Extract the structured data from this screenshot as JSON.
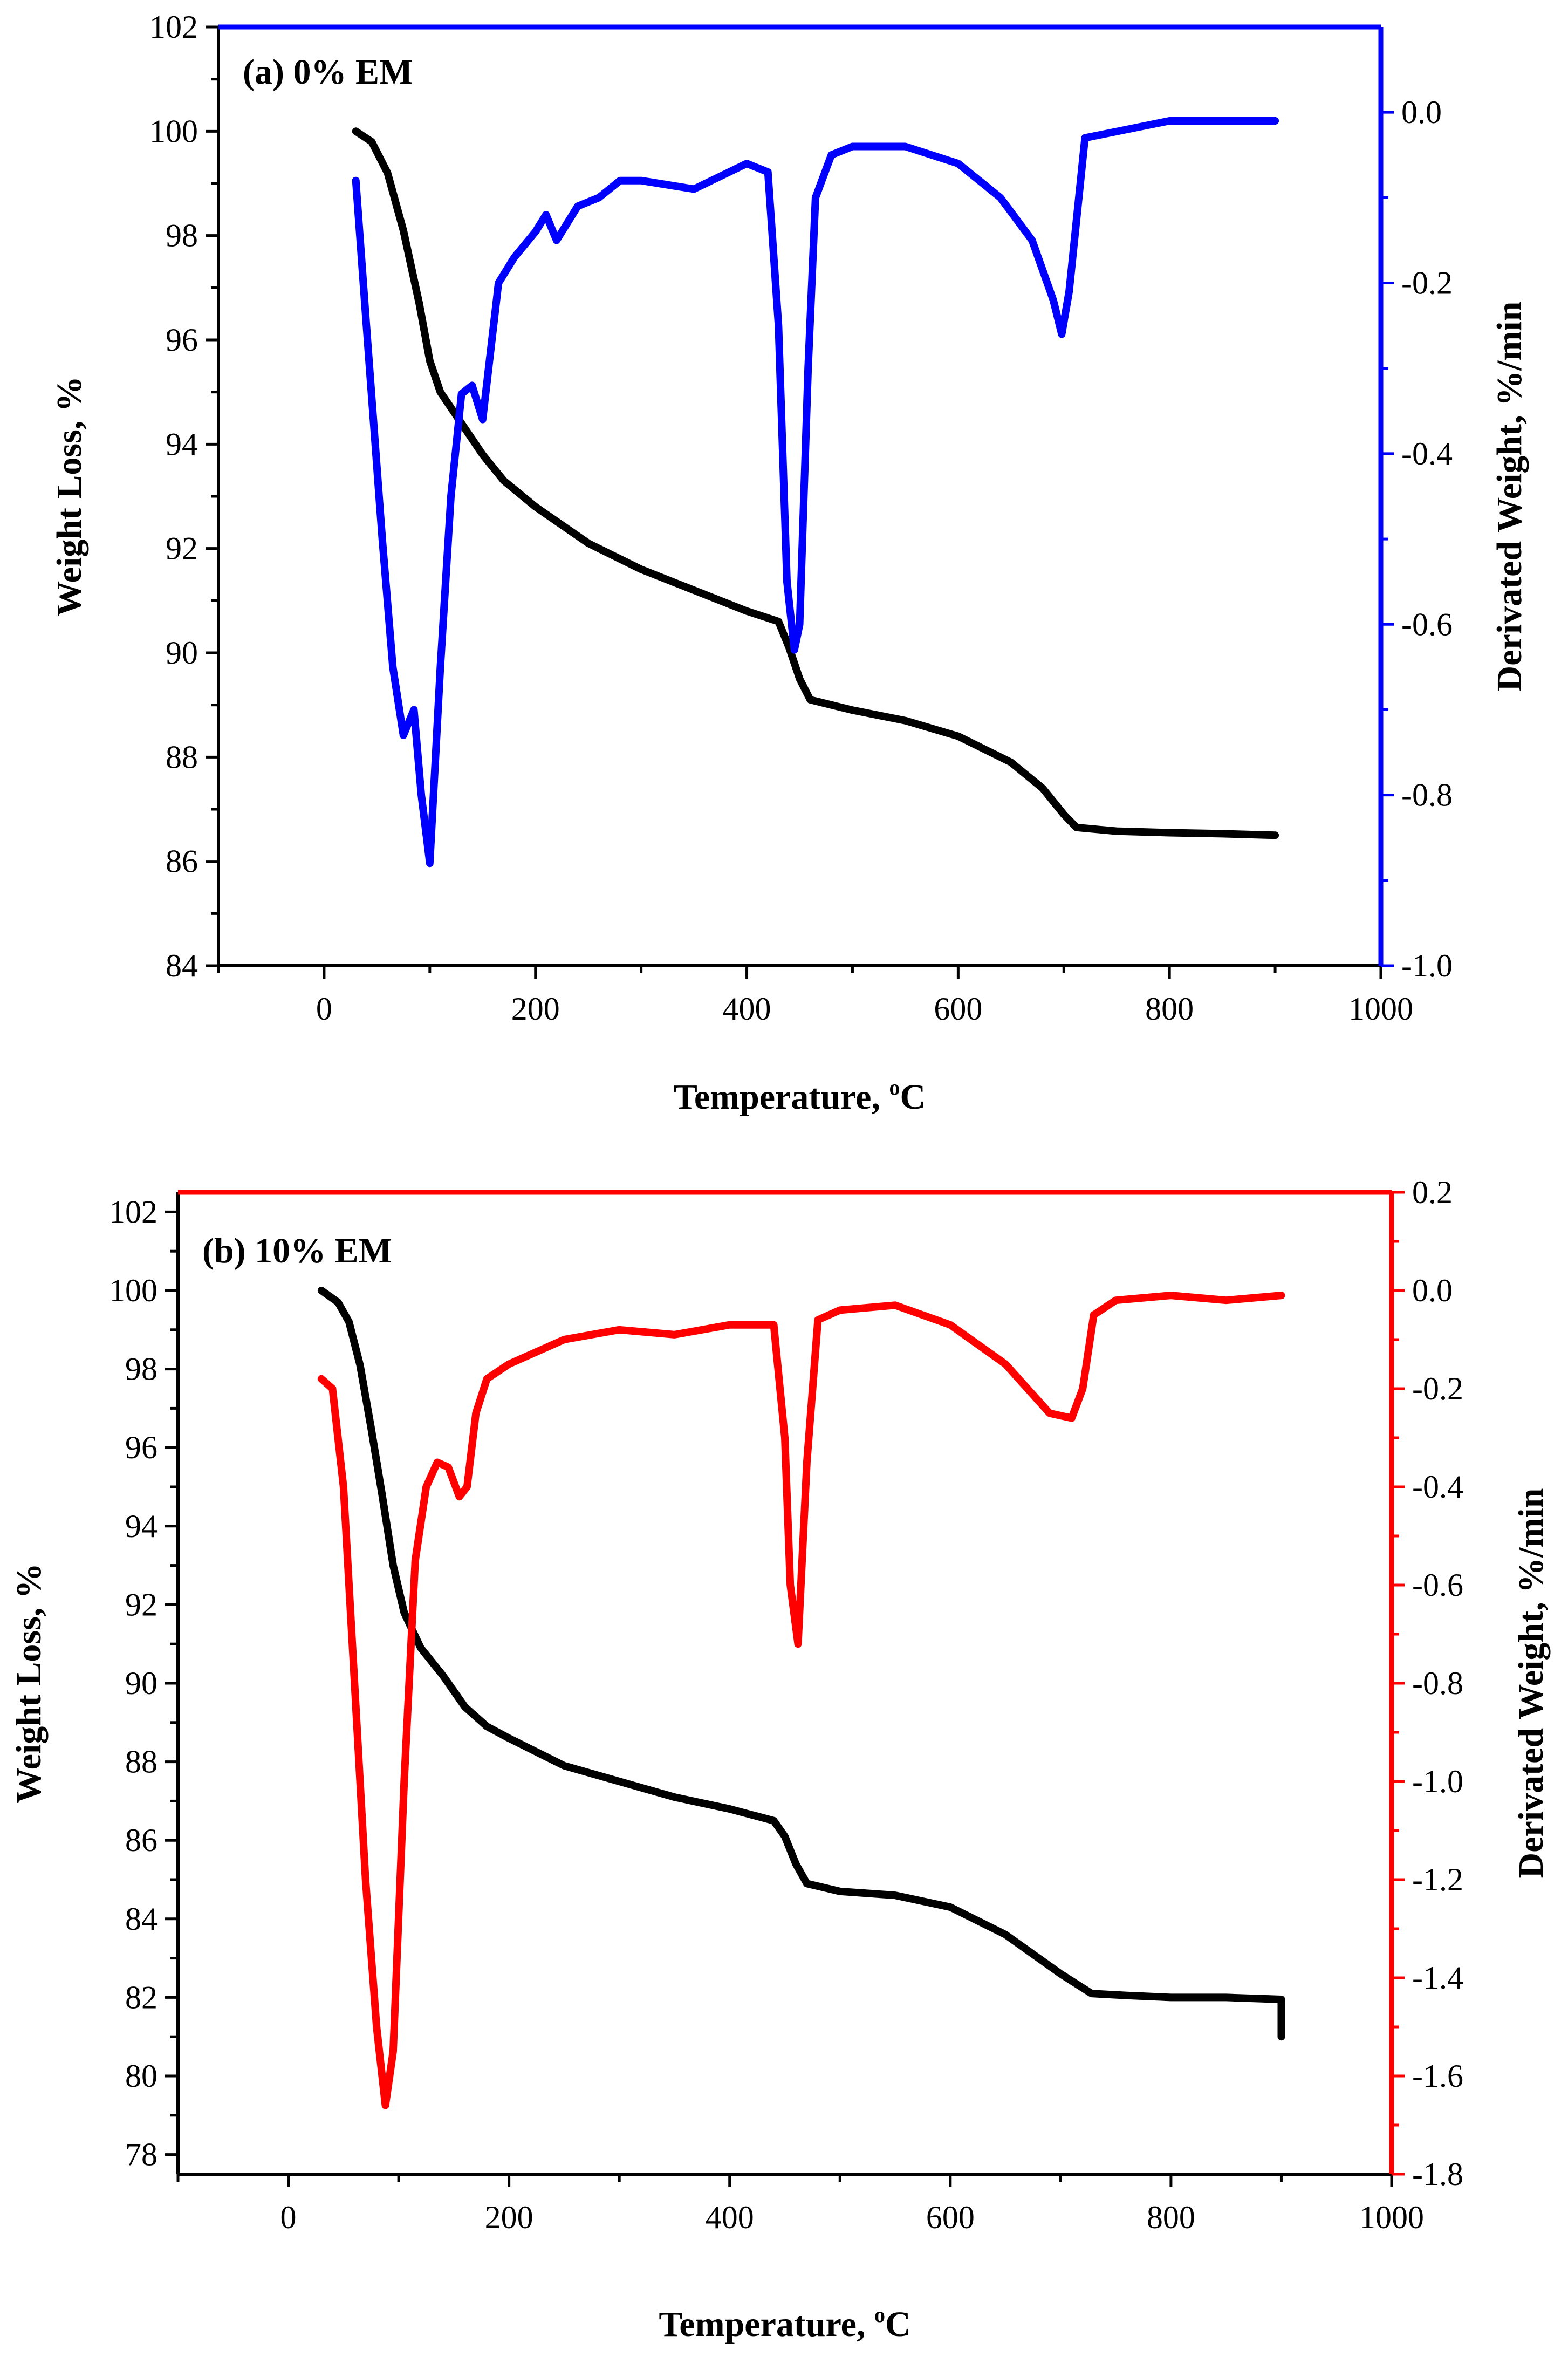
{
  "chart_data": [
    {
      "type": "line",
      "panel_label": "(a) 0% EM",
      "xlabel": "Temperature, ",
      "xlabel_sup": "o",
      "xlabel_unit": "C",
      "ylabel": "Weight Loss, %",
      "y2label": "Derivated Weight, %/min",
      "xlim": [
        -100,
        1000
      ],
      "ylim": [
        84,
        102
      ],
      "y2lim": [
        -1.0,
        0.1
      ],
      "x_ticks": [
        0,
        200,
        400,
        600,
        800,
        1000
      ],
      "y_ticks": [
        84,
        86,
        88,
        90,
        92,
        94,
        96,
        98,
        100,
        102
      ],
      "y2_ticks": [
        "-1.0",
        "-0.8",
        "-0.6",
        "-0.4",
        "-0.2",
        "0.0"
      ],
      "colors": {
        "weight": "#000000",
        "derivative": "#0000ff"
      },
      "series": [
        {
          "name": "Weight Loss",
          "axis": "left",
          "color": "#000000",
          "x": [
            30,
            45,
            60,
            75,
            90,
            100,
            110,
            130,
            150,
            170,
            200,
            250,
            300,
            350,
            400,
            430,
            440,
            450,
            460,
            500,
            550,
            600,
            650,
            680,
            700,
            712,
            750,
            800,
            850,
            900
          ],
          "y": [
            100.0,
            99.8,
            99.2,
            98.1,
            96.7,
            95.6,
            95.0,
            94.4,
            93.8,
            93.3,
            92.8,
            92.1,
            91.6,
            91.2,
            90.8,
            90.6,
            90.1,
            89.5,
            89.1,
            88.9,
            88.7,
            88.4,
            87.9,
            87.4,
            86.9,
            86.65,
            86.58,
            86.55,
            86.53,
            86.5
          ]
        },
        {
          "name": "Derivated Weight",
          "axis": "right",
          "color": "#0000ff",
          "x": [
            30,
            40,
            55,
            65,
            75,
            85,
            92,
            100,
            110,
            120,
            130,
            140,
            150,
            165,
            180,
            200,
            210,
            220,
            240,
            260,
            280,
            300,
            350,
            400,
            420,
            430,
            438,
            445,
            450,
            458,
            465,
            480,
            500,
            550,
            600,
            640,
            670,
            690,
            698,
            705,
            720,
            760,
            800,
            850,
            900
          ],
          "y": [
            -0.08,
            -0.25,
            -0.5,
            -0.65,
            -0.73,
            -0.7,
            -0.8,
            -0.88,
            -0.65,
            -0.45,
            -0.33,
            -0.32,
            -0.36,
            -0.2,
            -0.17,
            -0.14,
            -0.12,
            -0.15,
            -0.11,
            -0.1,
            -0.08,
            -0.08,
            -0.09,
            -0.06,
            -0.07,
            -0.25,
            -0.55,
            -0.63,
            -0.6,
            -0.3,
            -0.1,
            -0.05,
            -0.04,
            -0.04,
            -0.06,
            -0.1,
            -0.15,
            -0.22,
            -0.26,
            -0.21,
            -0.03,
            -0.02,
            -0.01,
            -0.01,
            -0.01
          ]
        }
      ]
    },
    {
      "type": "line",
      "panel_label": "(b) 10% EM",
      "xlabel": "Temperature, ",
      "xlabel_sup": "o",
      "xlabel_unit": "C",
      "ylabel": "Weight Loss, %",
      "y2label": "Derivated Weight, %/min",
      "xlim": [
        -100,
        1000
      ],
      "ylim": [
        77.5,
        102.5
      ],
      "y2lim": [
        -1.8,
        0.2
      ],
      "x_ticks": [
        0,
        200,
        400,
        600,
        800,
        1000
      ],
      "y_ticks": [
        78,
        80,
        82,
        84,
        86,
        88,
        90,
        92,
        94,
        96,
        98,
        100,
        102
      ],
      "y2_ticks": [
        "-1.8",
        "-1.6",
        "-1.4",
        "-1.2",
        "-1.0",
        "-0.8",
        "-0.6",
        "-0.4",
        "-0.2",
        "0.0",
        "0.2"
      ],
      "colors": {
        "weight": "#000000",
        "derivative": "#ff0000"
      },
      "series": [
        {
          "name": "Weight Loss",
          "axis": "left",
          "color": "#000000",
          "x": [
            30,
            45,
            55,
            65,
            75,
            85,
            95,
            105,
            120,
            140,
            160,
            180,
            200,
            250,
            300,
            350,
            400,
            440,
            450,
            460,
            470,
            500,
            550,
            600,
            650,
            700,
            728,
            760,
            800,
            850,
            900,
            900
          ],
          "y": [
            100.0,
            99.7,
            99.2,
            98.1,
            96.5,
            94.8,
            93.0,
            91.8,
            90.9,
            90.2,
            89.4,
            88.9,
            88.6,
            87.9,
            87.5,
            87.1,
            86.8,
            86.5,
            86.1,
            85.4,
            84.9,
            84.7,
            84.6,
            84.3,
            83.6,
            82.6,
            82.1,
            82.05,
            82.0,
            82.0,
            81.95,
            81.0
          ]
        },
        {
          "name": "Derivated Weight",
          "axis": "right",
          "color": "#ff0000",
          "x": [
            30,
            40,
            50,
            60,
            70,
            80,
            88,
            95,
            105,
            115,
            125,
            135,
            145,
            155,
            162,
            170,
            180,
            200,
            250,
            300,
            350,
            400,
            440,
            450,
            455,
            462,
            470,
            480,
            500,
            550,
            600,
            650,
            690,
            710,
            720,
            730,
            750,
            800,
            850,
            900
          ],
          "y": [
            -0.18,
            -0.2,
            -0.4,
            -0.8,
            -1.2,
            -1.5,
            -1.66,
            -1.55,
            -1.0,
            -0.55,
            -0.4,
            -0.35,
            -0.36,
            -0.42,
            -0.4,
            -0.25,
            -0.18,
            -0.15,
            -0.1,
            -0.08,
            -0.09,
            -0.07,
            -0.07,
            -0.3,
            -0.6,
            -0.72,
            -0.35,
            -0.06,
            -0.04,
            -0.03,
            -0.07,
            -0.15,
            -0.25,
            -0.26,
            -0.2,
            -0.05,
            -0.02,
            -0.01,
            -0.02,
            -0.01
          ]
        }
      ]
    }
  ]
}
